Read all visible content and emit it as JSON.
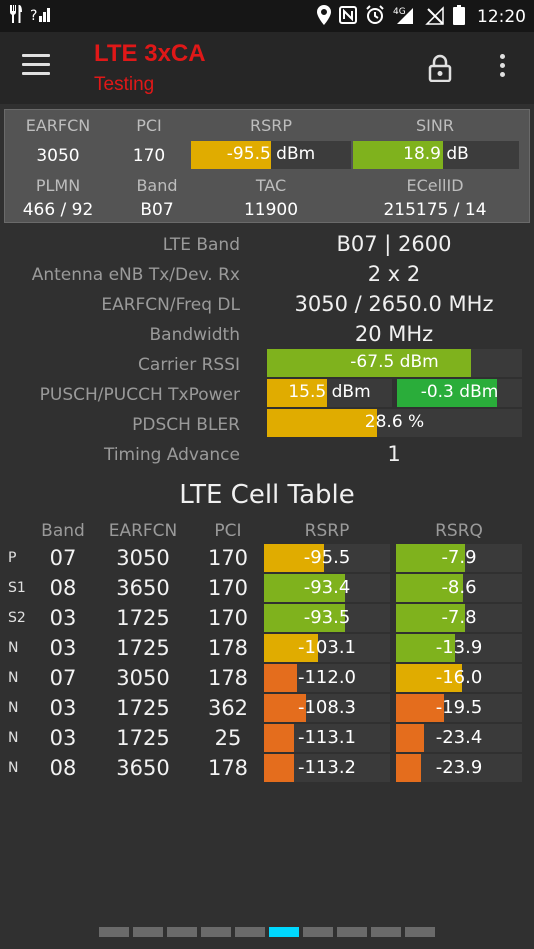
{
  "status_bar": {
    "left_icons": [
      "fork-knife-icon",
      "signal-question-icon"
    ],
    "right_icons": [
      "location-icon",
      "nfc-icon",
      "alarm-icon",
      "network-4g-icon",
      "no-signal-icon",
      "battery-icon"
    ],
    "network_label": "4G",
    "time": "12:20"
  },
  "toolbar": {
    "title": "LTE 3xCA",
    "subtitle": "Testing"
  },
  "summary": {
    "headers": {
      "earfcn": "EARFCN",
      "pci": "PCI",
      "rsrp": "RSRP",
      "sinr": "SINR",
      "plmn": "PLMN",
      "band": "Band",
      "tac": "TAC",
      "ecellid": "ECellID"
    },
    "earfcn": "3050",
    "pci": "170",
    "rsrp": {
      "text": "-95.5 dBm",
      "level": 0.5,
      "color": "#e0ac00"
    },
    "sinr": {
      "text": "18.9 dB",
      "level": 0.54,
      "color": "#7fb21d"
    },
    "plmn": "466 / 92",
    "band": "B07",
    "tac": "11900",
    "ecellid": "215175 / 14"
  },
  "details": {
    "lte_band": {
      "label": "LTE Band",
      "value": "B07 | 2600"
    },
    "antenna": {
      "label": "Antenna eNB Tx/Dev. Rx",
      "value": "2 x 2"
    },
    "earfcn_freq": {
      "label": "EARFCN/Freq DL",
      "value": "3050 / 2650.0 MHz"
    },
    "bandwidth": {
      "label": "Bandwidth",
      "value": "20 MHz"
    },
    "carrier_rssi": {
      "label": "Carrier RSSI",
      "text": "-67.5 dBm",
      "level": 0.8,
      "color": "#7fb21d"
    },
    "tx_power": {
      "label": "PUSCH/PUCCH TxPower",
      "pusch": {
        "text": "15.5 dBm",
        "level": 0.48,
        "color": "#e0ac00"
      },
      "pucch": {
        "text": "-0.3 dBm",
        "level": 0.8,
        "color": "#2aad3a"
      }
    },
    "pdsch_bler": {
      "label": "PDSCH BLER",
      "text": "28.6 %",
      "level": 0.43,
      "color": "#e0ac00"
    },
    "timing_advance": {
      "label": "Timing Advance",
      "value": "1"
    }
  },
  "cell_table": {
    "title": "LTE Cell Table",
    "headers": {
      "band": "Band",
      "earfcn": "EARFCN",
      "pci": "PCI",
      "rsrp": "RSRP",
      "rsrq": "RSRQ"
    },
    "rows": [
      {
        "type": "P",
        "band": "07",
        "earfcn": "3050",
        "pci": "170",
        "rsrp": {
          "text": "-95.5",
          "level": 0.48,
          "color": "#e0ac00"
        },
        "rsrq": {
          "text": "-7.9",
          "level": 0.55,
          "color": "#7fb21d"
        }
      },
      {
        "type": "S1",
        "band": "08",
        "earfcn": "3650",
        "pci": "170",
        "rsrp": {
          "text": "-93.4",
          "level": 0.64,
          "color": "#7fb21d"
        },
        "rsrq": {
          "text": "-8.6",
          "level": 0.53,
          "color": "#7fb21d"
        }
      },
      {
        "type": "S2",
        "band": "03",
        "earfcn": "1725",
        "pci": "170",
        "rsrp": {
          "text": "-93.5",
          "level": 0.64,
          "color": "#7fb21d"
        },
        "rsrq": {
          "text": "-7.8",
          "level": 0.55,
          "color": "#7fb21d"
        }
      },
      {
        "type": "N",
        "band": "03",
        "earfcn": "1725",
        "pci": "178",
        "rsrp": {
          "text": "-103.1",
          "level": 0.43,
          "color": "#e0ac00"
        },
        "rsrq": {
          "text": "-13.9",
          "level": 0.47,
          "color": "#7fb21d"
        }
      },
      {
        "type": "N",
        "band": "07",
        "earfcn": "3050",
        "pci": "178",
        "rsrp": {
          "text": "-112.0",
          "level": 0.26,
          "color": "#e46d1d"
        },
        "rsrq": {
          "text": "-16.0",
          "level": 0.52,
          "color": "#e0ac00"
        }
      },
      {
        "type": "N",
        "band": "03",
        "earfcn": "1725",
        "pci": "362",
        "rsrp": {
          "text": "-108.3",
          "level": 0.33,
          "color": "#e46d1d"
        },
        "rsrq": {
          "text": "-19.5",
          "level": 0.38,
          "color": "#e46d1d"
        }
      },
      {
        "type": "N",
        "band": "03",
        "earfcn": "1725",
        "pci": "25",
        "rsrp": {
          "text": "-113.1",
          "level": 0.24,
          "color": "#e46d1d"
        },
        "rsrq": {
          "text": "-23.4",
          "level": 0.22,
          "color": "#e46d1d"
        }
      },
      {
        "type": "N",
        "band": "08",
        "earfcn": "3650",
        "pci": "178",
        "rsrp": {
          "text": "-113.2",
          "level": 0.24,
          "color": "#e46d1d"
        },
        "rsrq": {
          "text": "-23.9",
          "level": 0.2,
          "color": "#e46d1d"
        }
      }
    ]
  },
  "pager": {
    "count": 10,
    "active_index": 5
  }
}
